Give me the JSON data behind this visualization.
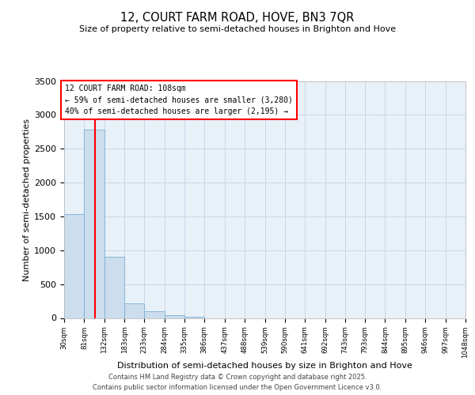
{
  "title": "12, COURT FARM ROAD, HOVE, BN3 7QR",
  "subtitle": "Size of property relative to semi-detached houses in Brighton and Hove",
  "xlabel": "Distribution of semi-detached houses by size in Brighton and Hove",
  "ylabel": "Number of semi-detached properties",
  "bar_values": [
    1530,
    2780,
    900,
    220,
    100,
    40,
    15,
    0,
    0,
    0,
    0,
    0,
    0,
    0,
    0,
    0,
    0,
    0,
    0,
    0
  ],
  "bin_edges": [
    30,
    81,
    132,
    183,
    233,
    284,
    335,
    386,
    437,
    488,
    539,
    590,
    641,
    692,
    743,
    793,
    844,
    895,
    946,
    997,
    1048
  ],
  "bin_labels": [
    "30sqm",
    "81sqm",
    "132sqm",
    "183sqm",
    "233sqm",
    "284sqm",
    "335sqm",
    "386sqm",
    "437sqm",
    "488sqm",
    "539sqm",
    "590sqm",
    "641sqm",
    "692sqm",
    "743sqm",
    "793sqm",
    "844sqm",
    "895sqm",
    "946sqm",
    "997sqm",
    "1048sqm"
  ],
  "bar_color": "#ccdded",
  "bar_edge_color": "#7bafd4",
  "property_line_x": 108,
  "annotation_line1": "12 COURT FARM ROAD: 108sqm",
  "annotation_line2": "← 59% of semi-detached houses are smaller (3,280)",
  "annotation_line3": "40% of semi-detached houses are larger (2,195) →",
  "ylim": [
    0,
    3500
  ],
  "yticks": [
    0,
    500,
    1000,
    1500,
    2000,
    2500,
    3000,
    3500
  ],
  "grid_color": "#c8d8e8",
  "background_color": "#e8f0f8",
  "footer_line1": "Contains HM Land Registry data © Crown copyright and database right 2025.",
  "footer_line2": "Contains public sector information licensed under the Open Government Licence v3.0."
}
